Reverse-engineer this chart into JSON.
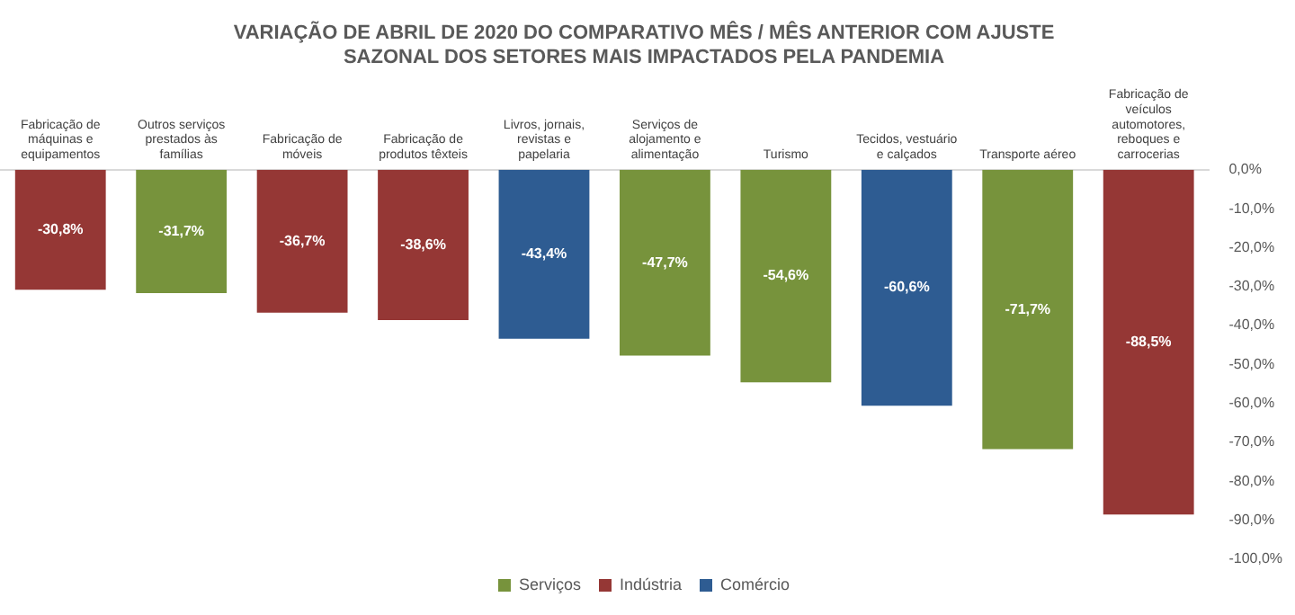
{
  "chart_data": {
    "type": "bar",
    "title": "VARIAÇÃO DE ABRIL DE 2020 DO COMPARATIVO MÊS / MÊS ANTERIOR COM AJUSTE SAZONAL DOS SETORES MAIS IMPACTADOS PELA PANDEMIA",
    "categories": [
      "Fabricação de máquinas e equipamentos",
      "Outros serviços prestados às famílias",
      "Fabricação de móveis",
      "Fabricação de produtos têxteis",
      "Livros, jornais, revistas e papelaria",
      "Serviços de alojamento e alimentação",
      "Turismo",
      "Tecidos, vestuário e calçados",
      "Transporte aéreo",
      "Fabricação de veículos automotores, reboques e carrocerias"
    ],
    "series": [
      {
        "name": "Serviços",
        "color": "#77933c",
        "values": [
          null,
          -31.7,
          null,
          null,
          null,
          -47.7,
          -54.6,
          null,
          -71.7,
          null
        ],
        "value_labels": [
          null,
          "-31,7%",
          null,
          null,
          null,
          "-47,7%",
          "-54,6%",
          null,
          "-71,7%",
          null
        ]
      },
      {
        "name": "Indústria",
        "color": "#953735",
        "values": [
          -30.8,
          null,
          -36.7,
          -38.6,
          null,
          null,
          null,
          null,
          null,
          -88.5
        ],
        "value_labels": [
          "-30,8%",
          null,
          "-36,7%",
          "-38,6%",
          null,
          null,
          null,
          null,
          null,
          "-88,5%"
        ]
      },
      {
        "name": "Comércio",
        "color": "#2e5c92",
        "values": [
          null,
          null,
          null,
          null,
          -43.4,
          null,
          null,
          -60.6,
          null,
          null
        ],
        "value_labels": [
          null,
          null,
          null,
          null,
          "-43,4%",
          null,
          null,
          "-60,6%",
          null,
          null
        ]
      }
    ],
    "stacked": true,
    "ylim": [
      -100,
      0
    ],
    "yticks": [
      {
        "value": 0,
        "label": "0,0%"
      },
      {
        "value": -10,
        "label": "-10,0%"
      },
      {
        "value": -20,
        "label": "-20,0%"
      },
      {
        "value": -30,
        "label": "-30,0%"
      },
      {
        "value": -40,
        "label": "-40,0%"
      },
      {
        "value": -50,
        "label": "-50,0%"
      },
      {
        "value": -60,
        "label": "-60,0%"
      },
      {
        "value": -70,
        "label": "-70,0%"
      },
      {
        "value": -80,
        "label": "-80,0%"
      },
      {
        "value": -90,
        "label": "-90,0%"
      },
      {
        "value": -100,
        "label": "-100,0%"
      }
    ],
    "grid": false,
    "legend": "bottom"
  }
}
